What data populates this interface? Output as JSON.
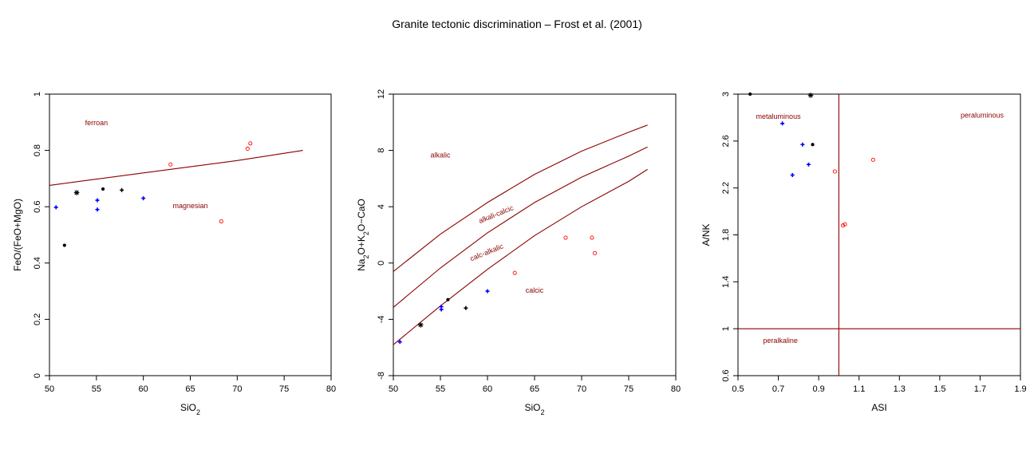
{
  "title": "Granite tectonic discrimination – Frost et al. (2001)",
  "colors": {
    "line": "#8b0000",
    "region_label": "#8b0000",
    "axis": "#000000",
    "black": "#000000",
    "blue": "#0000ff",
    "red": "#ff0000"
  },
  "chart_data": [
    {
      "type": "scatter",
      "xlabel": "SiO2",
      "ylabel": "FeO/(FeO+MgO)",
      "xlim": [
        50,
        80
      ],
      "ylim": [
        0,
        1
      ],
      "xticks": [
        "50",
        "55",
        "60",
        "65",
        "70",
        "75",
        "80"
      ],
      "yticks": [
        "0",
        "0.2",
        "0.4",
        "0.6",
        "0.8",
        "1"
      ],
      "region_labels": [
        {
          "text": "ferroan",
          "x": 55,
          "y": 0.89
        },
        {
          "text": "magnesian",
          "x": 65,
          "y": 0.595
        }
      ],
      "lines": [
        {
          "name": "ferroan-magnesian boundary",
          "x": [
            50,
            55,
            60,
            65,
            70,
            77
          ],
          "y": [
            0.676,
            0.698,
            0.72,
            0.742,
            0.764,
            0.8
          ]
        }
      ],
      "series": [
        {
          "color": "black",
          "marker": "dot",
          "x": [
            51.6,
            55.7
          ],
          "y": [
            0.463,
            0.663
          ]
        },
        {
          "color": "black",
          "marker": "star",
          "x": [
            52.9
          ],
          "y": [
            0.65
          ]
        },
        {
          "color": "black",
          "marker": "plus",
          "x": [
            57.7
          ],
          "y": [
            0.659
          ]
        },
        {
          "color": "blue",
          "marker": "plus",
          "x": [
            50.7,
            55.1,
            55.1,
            60.0
          ],
          "y": [
            0.598,
            0.623,
            0.59,
            0.63
          ]
        },
        {
          "color": "red",
          "marker": "circle",
          "x": [
            62.9,
            68.3,
            71.1,
            71.4
          ],
          "y": [
            0.75,
            0.548,
            0.806,
            0.825
          ]
        }
      ]
    },
    {
      "type": "scatter",
      "xlabel": "SiO2",
      "ylabel": "Na2O+K2O−CaO",
      "xlim": [
        50,
        80
      ],
      "ylim": [
        -8,
        12
      ],
      "xticks": [
        "50",
        "55",
        "60",
        "65",
        "70",
        "75",
        "80"
      ],
      "yticks": [
        "-8",
        "-4",
        "0",
        "4",
        "8",
        "12"
      ],
      "region_labels": [
        {
          "text": "alkalic",
          "x": 55,
          "y": 7.5,
          "rotate": 0
        },
        {
          "text": "alkali-calcic",
          "x": 61,
          "y": 3.3,
          "rotate": -22
        },
        {
          "text": "calc-alkalic",
          "x": 60,
          "y": 0.6,
          "rotate": -22
        },
        {
          "text": "calcic",
          "x": 65,
          "y": -2.1,
          "rotate": 0
        }
      ],
      "lines": [
        {
          "name": "alkalic / alkali-calcic",
          "x": [
            50,
            55,
            60,
            65,
            70,
            75,
            77
          ],
          "y": [
            -0.6,
            2.05,
            4.3,
            6.3,
            7.95,
            9.3,
            9.8
          ]
        },
        {
          "name": "alkali-calcic / calc-alkalic",
          "x": [
            50,
            55,
            60,
            65,
            70,
            75,
            77
          ],
          "y": [
            -3.15,
            -0.35,
            2.15,
            4.3,
            6.1,
            7.6,
            8.25
          ]
        },
        {
          "name": "calc-alkalic / calcic",
          "x": [
            50,
            55,
            60,
            65,
            70,
            75,
            77
          ],
          "y": [
            -5.8,
            -3.05,
            -0.45,
            1.95,
            4.0,
            5.8,
            6.65
          ]
        }
      ],
      "series": [
        {
          "color": "black",
          "marker": "dot",
          "x": [
            55.8
          ],
          "y": [
            -2.6
          ]
        },
        {
          "color": "black",
          "marker": "star",
          "x": [
            52.9
          ],
          "y": [
            -4.4
          ]
        },
        {
          "color": "black",
          "marker": "plus",
          "x": [
            57.7
          ],
          "y": [
            -3.2
          ]
        },
        {
          "color": "blue",
          "marker": "plus",
          "x": [
            50.7,
            55.1,
            55.1,
            60.0
          ],
          "y": [
            -5.6,
            -3.1,
            -3.3,
            -2.0
          ]
        },
        {
          "color": "red",
          "marker": "circle",
          "x": [
            62.9,
            68.3,
            71.1,
            71.4
          ],
          "y": [
            -0.7,
            1.8,
            1.8,
            0.7
          ]
        }
      ]
    },
    {
      "type": "scatter",
      "xlabel": "ASI",
      "ylabel": "A/NK",
      "xlim": [
        0.5,
        1.9
      ],
      "ylim": [
        0.6,
        3
      ],
      "xticks": [
        "0.5",
        "0.7",
        "0.9",
        "1.1",
        "1.3",
        "1.5",
        "1.7",
        "1.9"
      ],
      "xtick_values": [
        0.5,
        0.7,
        0.9,
        1.1,
        1.3,
        1.5,
        1.7,
        1.9
      ],
      "yticks": [
        "0.6",
        "1",
        "1.4",
        "1.8",
        "2.2",
        "2.6",
        "3"
      ],
      "ytick_values": [
        0.6,
        1.0,
        1.4,
        1.8,
        2.2,
        2.6,
        3.0
      ],
      "region_labels": [
        {
          "text": "metaluminous",
          "x": 0.7,
          "y": 2.79
        },
        {
          "text": "peraluminous",
          "x": 1.71,
          "y": 2.8
        },
        {
          "text": "peralkaline",
          "x": 0.71,
          "y": 0.88
        }
      ],
      "lines": [
        {
          "name": "ASI = 1",
          "x": [
            1.0,
            1.0
          ],
          "y": [
            0.6,
            3.0
          ]
        },
        {
          "name": "A/NK = 1",
          "x": [
            0.5,
            1.9
          ],
          "y": [
            1.0,
            1.0
          ]
        }
      ],
      "series": [
        {
          "color": "black",
          "marker": "dot",
          "x": [
            0.56,
            0.87
          ],
          "y": [
            3.0,
            2.57
          ]
        },
        {
          "color": "black",
          "marker": "star",
          "x": [
            0.86
          ],
          "y": [
            2.99
          ]
        },
        {
          "color": "blue",
          "marker": "plus",
          "x": [
            0.72,
            0.77,
            0.82,
            0.85
          ],
          "y": [
            2.75,
            2.31,
            2.57,
            2.4
          ]
        },
        {
          "color": "red",
          "marker": "circle",
          "x": [
            0.98,
            1.02,
            1.03,
            1.17
          ],
          "y": [
            2.34,
            1.88,
            1.89,
            2.44
          ]
        }
      ]
    }
  ]
}
